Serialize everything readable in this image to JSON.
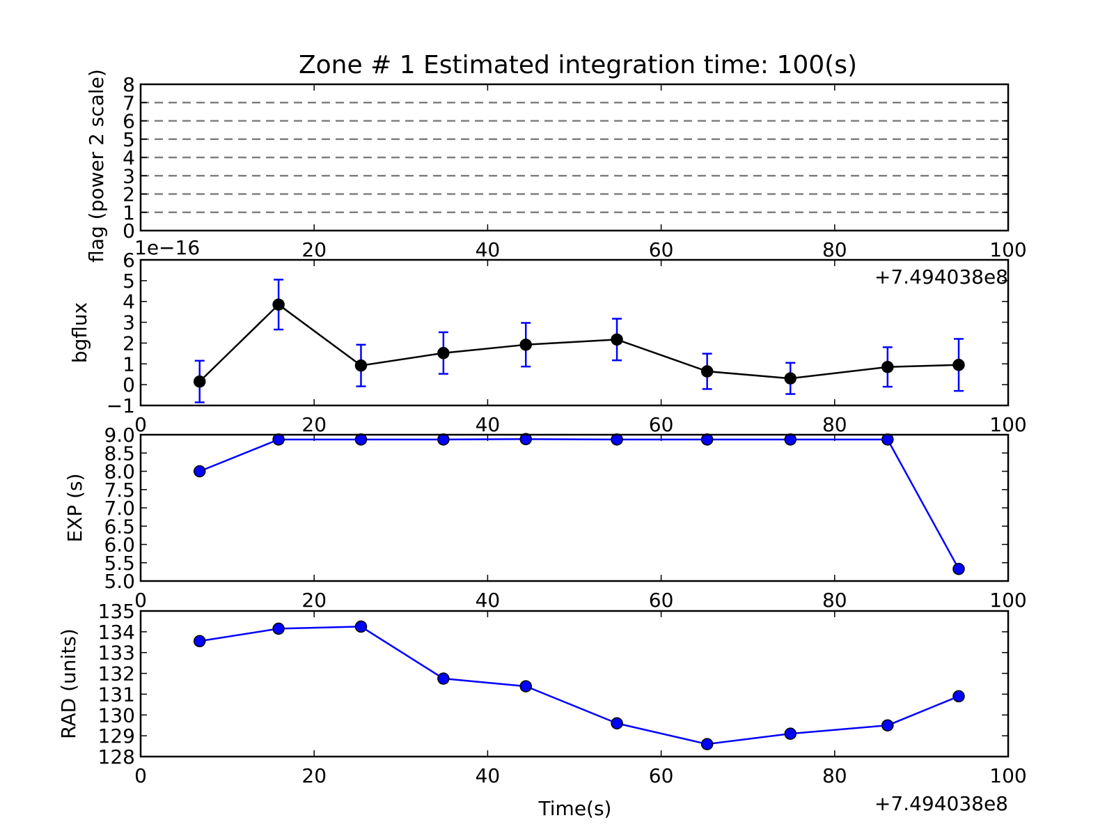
{
  "title": "Zone # 1 Estimated integration time: 100(s)",
  "colors": {
    "black": "#000000",
    "blue": "#0000ff",
    "gray_dash": "#808080",
    "white": "#ffffff"
  },
  "chart_data": [
    {
      "id": "flag",
      "type": "line",
      "ylabel": "flag (power 2 scale)",
      "xlim": [
        0,
        100
      ],
      "ylim": [
        0,
        8
      ],
      "x_ticks": [
        "20",
        "40",
        "60",
        "80",
        "100"
      ],
      "y_ticks": [
        "0",
        "1",
        "2",
        "3",
        "4",
        "5",
        "6",
        "7",
        "8"
      ],
      "reference_lines": [
        1,
        2,
        3,
        4,
        5,
        6,
        7
      ],
      "series": []
    },
    {
      "id": "bgflux",
      "type": "line",
      "ylabel": "bgflux",
      "y_offset_label": "1e−16",
      "x_offset_label": "+7.494038e8",
      "xlim": [
        0,
        100
      ],
      "ylim": [
        -1,
        6
      ],
      "x_ticks": [
        "0",
        "20",
        "40",
        "60",
        "80",
        "100"
      ],
      "y_ticks": [
        "−1",
        "0",
        "1",
        "2",
        "3",
        "4",
        "5",
        "6"
      ],
      "series": [
        {
          "x": [
            6.8,
            15.9,
            25.4,
            34.9,
            44.4,
            54.9,
            65.3,
            74.9,
            86.1,
            94.3
          ],
          "y": [
            0.15,
            3.85,
            0.92,
            1.52,
            1.92,
            2.17,
            0.64,
            0.3,
            0.85,
            0.95
          ],
          "yerr": [
            1.0,
            1.2,
            1.0,
            1.0,
            1.05,
            1.0,
            0.85,
            0.75,
            0.95,
            1.25
          ]
        }
      ]
    },
    {
      "id": "exp",
      "type": "line",
      "ylabel": "EXP (s)",
      "xlim": [
        0,
        100
      ],
      "ylim": [
        5.0,
        9.0
      ],
      "x_ticks": [
        "0",
        "20",
        "40",
        "60",
        "80",
        "100"
      ],
      "y_ticks": [
        "5.0",
        "5.5",
        "6.0",
        "6.5",
        "7.0",
        "7.5",
        "8.0",
        "8.5",
        "9.0"
      ],
      "series": [
        {
          "x": [
            6.8,
            15.9,
            25.4,
            34.9,
            44.4,
            54.9,
            65.3,
            74.9,
            86.1,
            94.3
          ],
          "y": [
            8.0,
            8.87,
            8.87,
            8.87,
            8.88,
            8.87,
            8.87,
            8.87,
            8.87,
            5.33
          ]
        }
      ]
    },
    {
      "id": "rad",
      "type": "line",
      "ylabel": "RAD (units)",
      "xlabel": "Time(s)",
      "x_offset_label": "+7.494038e8",
      "xlim": [
        0,
        100
      ],
      "ylim": [
        128,
        135
      ],
      "x_ticks": [
        "0",
        "20",
        "40",
        "60",
        "80",
        "100"
      ],
      "y_ticks": [
        "128",
        "129",
        "130",
        "131",
        "132",
        "133",
        "134",
        "135"
      ],
      "series": [
        {
          "x": [
            6.8,
            15.9,
            25.4,
            34.9,
            44.4,
            54.9,
            65.3,
            74.9,
            86.1,
            94.3
          ],
          "y": [
            133.55,
            134.15,
            134.25,
            131.75,
            131.38,
            129.6,
            128.6,
            129.1,
            129.5,
            130.9
          ]
        }
      ]
    }
  ]
}
